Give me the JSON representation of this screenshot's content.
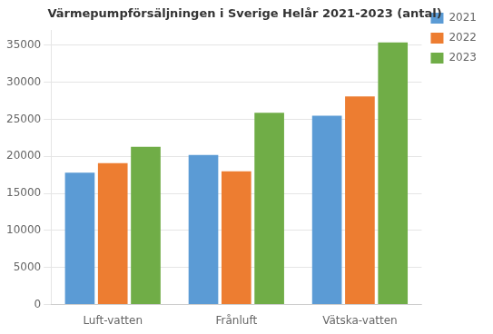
{
  "chart_data": {
    "type": "bar",
    "title": "Värmepumpförsäljningen i Sverige Helår 2021-2023 (antal)",
    "categories": [
      "Luft-vatten",
      "Frånluft",
      "Vätska-vatten"
    ],
    "series": [
      {
        "name": "2021",
        "color": "#5B9BD5",
        "values": [
          17800,
          20200,
          25500
        ]
      },
      {
        "name": "2022",
        "color": "#ED7D31",
        "values": [
          19100,
          18000,
          28100
        ]
      },
      {
        "name": "2023",
        "color": "#70AD47",
        "values": [
          21300,
          25900,
          35400
        ]
      }
    ],
    "ylim": [
      0,
      37000
    ],
    "yticks": [
      0,
      5000,
      10000,
      15000,
      20000,
      25000,
      30000,
      35000
    ],
    "grid": true,
    "legend": "right"
  }
}
